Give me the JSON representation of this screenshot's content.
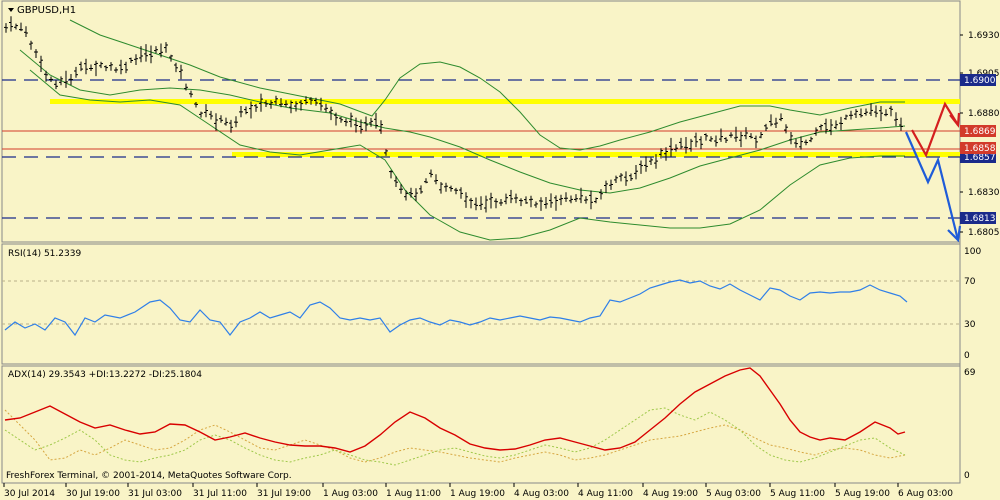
{
  "main_panel": {
    "symbol_label": "GBPUSD,H1",
    "price_ticks": [
      "1.6930",
      "1.6905",
      "1.6880",
      "1.6830",
      "1.6805"
    ],
    "price_badges": [
      {
        "text": "1.6900",
        "kind": "blue"
      },
      {
        "text": "1.6869",
        "kind": "red"
      },
      {
        "text": "1.6858",
        "kind": "red"
      },
      {
        "text": "1.6857",
        "kind": "blue"
      },
      {
        "text": "1.6813",
        "kind": "blue"
      }
    ]
  },
  "rsi_panel": {
    "label": "RSI(14) 51.2339",
    "ticks": [
      "100",
      "70",
      "30",
      "0"
    ]
  },
  "adx_panel": {
    "label": "ADX(14) 29.3543 +DI:13.2272 -DI:25.1804",
    "ticks": [
      "69",
      "0"
    ]
  },
  "watermark": "FreshForex Terminal, © 2001-2014, MetaQuotes Software Corp.",
  "time_axis": [
    "30 Jul 2014",
    "30 Jul 19:00",
    "31 Jul 03:00",
    "31 Jul 11:00",
    "31 Jul 19:00",
    "1 Aug 03:00",
    "1 Aug 11:00",
    "1 Aug 19:00",
    "4 Aug 03:00",
    "4 Aug 11:00",
    "4 Aug 19:00",
    "5 Aug 03:00",
    "5 Aug 11:00",
    "5 Aug 19:00",
    "6 Aug 03:00"
  ],
  "colors": {
    "background": "#f9f4c7",
    "candles": "#000000",
    "bollinger": "#2e8b2e",
    "dashed_levels": "#1a2a8a",
    "red_levels": "#d23a2a",
    "yellow_zone": "#ffff00",
    "rsi_line": "#2f7fe8",
    "adx_main": "#d80000",
    "di_plus": "#9fc84a",
    "di_minus": "#d6a640",
    "arrow_red": "#d41f1f",
    "arrow_blue": "#1f5cd8"
  }
}
